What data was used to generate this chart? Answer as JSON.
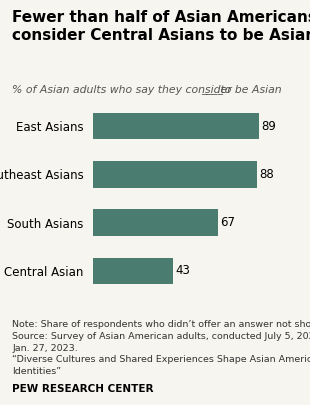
{
  "title": "Fewer than half of Asian Americans\nconsider Central Asians to be Asian",
  "subtitle_part1": "% of Asian adults who say they consider ",
  "subtitle_blank": "____",
  "subtitle_part2": " to be Asian",
  "categories": [
    "East Asians",
    "Southeast Asians",
    "South Asians",
    "Central Asian"
  ],
  "values": [
    89,
    88,
    67,
    43
  ],
  "bar_color": "#4a7c6f",
  "xlim": [
    0,
    100
  ],
  "value_label_fontsize": 8.5,
  "category_fontsize": 8.5,
  "title_fontsize": 11.0,
  "subtitle_fontsize": 7.8,
  "note_text": "Note: Share of respondents who didn’t offer an answer not shown.\nSource: Survey of Asian American adults, conducted July 5, 2022-\nJan. 27, 2023.\n“Diverse Cultures and Shared Experiences Shape Asian American\nIdentities”",
  "note_fontsize": 6.8,
  "source_label": "PEW RESEARCH CENTER",
  "source_fontsize": 7.5,
  "background_color": "#f7f5ef"
}
